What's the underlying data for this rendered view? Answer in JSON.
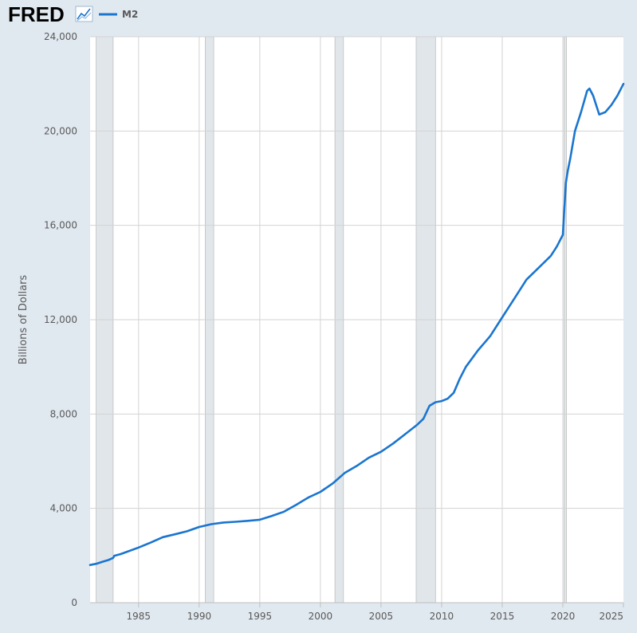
{
  "header": {
    "brand": "FRED",
    "brand_icon": "line-chart-icon"
  },
  "colors": {
    "page_background": "#e1e9f0",
    "plot_background": "#ffffff",
    "series": "#1a75cf",
    "recession": "#e1e6ea",
    "grid": "#d3d3d3",
    "brand_text": "#000000"
  },
  "chart_data": {
    "type": "line",
    "title": "",
    "xlabel": "",
    "ylabel": "Billions of Dollars",
    "xlim": [
      1981.0,
      2025.0
    ],
    "ylim": [
      0,
      24000
    ],
    "x_ticks": [
      1985,
      1990,
      1995,
      2000,
      2005,
      2010,
      2015,
      2020,
      2025
    ],
    "x_tick_labels": [
      "1985",
      "1990",
      "1995",
      "2000",
      "2005",
      "2010",
      "2015",
      "2020",
      "2025"
    ],
    "y_ticks": [
      0,
      4000,
      8000,
      12000,
      16000,
      20000,
      24000
    ],
    "y_tick_labels": [
      "0",
      "4,000",
      "8,000",
      "12,000",
      "16,000",
      "20,000",
      "24,000"
    ],
    "grid": true,
    "legend": "top-left",
    "recessions": [
      [
        1981.5,
        1982.9
      ],
      [
        1990.5,
        1991.2
      ],
      [
        2001.2,
        2001.9
      ],
      [
        2007.9,
        2009.5
      ],
      [
        2020.1,
        2020.3
      ]
    ],
    "series": [
      {
        "name": "M2",
        "color": "#1a75cf",
        "x": [
          1981.0,
          1981.5,
          1982.0,
          1982.5,
          1982.9,
          1983.0,
          1983.5,
          1984.0,
          1985.0,
          1986.0,
          1987.0,
          1988.0,
          1989.0,
          1990.0,
          1991.0,
          1992.0,
          1993.0,
          1994.0,
          1995.0,
          1996.0,
          1997.0,
          1998.0,
          1999.0,
          2000.0,
          2001.0,
          2002.0,
          2003.0,
          2004.0,
          2005.0,
          2006.0,
          2007.0,
          2008.0,
          2008.5,
          2009.0,
          2009.5,
          2010.0,
          2010.5,
          2011.0,
          2011.5,
          2012.0,
          2013.0,
          2014.0,
          2015.0,
          2016.0,
          2017.0,
          2018.0,
          2019.0,
          2019.5,
          2020.0,
          2020.1,
          2020.25,
          2020.4,
          2020.6,
          2021.0,
          2021.5,
          2022.0,
          2022.2,
          2022.5,
          2023.0,
          2023.5,
          2024.0,
          2024.5,
          2025.0
        ],
        "y": [
          1600,
          1650,
          1730,
          1810,
          1900,
          1990,
          2060,
          2150,
          2340,
          2550,
          2780,
          2900,
          3030,
          3210,
          3330,
          3400,
          3430,
          3470,
          3520,
          3680,
          3860,
          4150,
          4460,
          4700,
          5050,
          5500,
          5800,
          6150,
          6400,
          6750,
          7150,
          7550,
          7800,
          8350,
          8500,
          8550,
          8650,
          8900,
          9500,
          10000,
          10700,
          11300,
          12100,
          12900,
          13700,
          14200,
          14700,
          15100,
          15600,
          16500,
          17800,
          18300,
          18800,
          20000,
          20800,
          21700,
          21800,
          21500,
          20700,
          20800,
          21100,
          21500,
          22000
        ]
      }
    ]
  }
}
